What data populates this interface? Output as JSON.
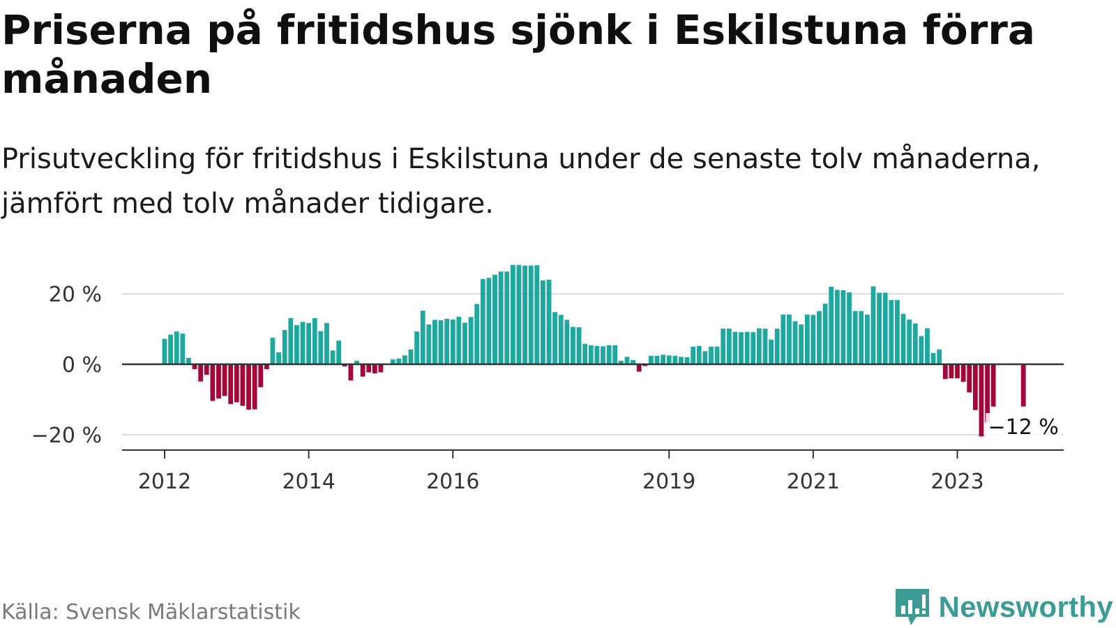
{
  "title": "Priserna på fritidshus sjönk i Eskilstuna förra månaden",
  "subtitle": "Prisutveckling för fritidshus i Eskilstuna under de senaste tolv månaderna, jämfört med tolv månader tidigare.",
  "source": "Källa: Svensk Mäklarstatistik",
  "brand": "Newsworthy",
  "colors": {
    "positive": "#1fa8a0",
    "negative": "#a3073a",
    "grid": "#dddddd",
    "zero": "#333333",
    "brand": "#3c9b94"
  },
  "chart_data": {
    "type": "bar",
    "ylim": [
      -24,
      30
    ],
    "y_ticks": [
      20,
      0,
      -20
    ],
    "y_tick_labels": [
      "20 %",
      "0 %",
      "−20 %"
    ],
    "x_ticks": [
      {
        "label": "2012",
        "date": "2012-01"
      },
      {
        "label": "2014",
        "date": "2014-01"
      },
      {
        "label": "2016",
        "date": "2016-01"
      },
      {
        "label": "2019",
        "date": "2019-01"
      },
      {
        "label": "2021",
        "date": "2021-01"
      },
      {
        "label": "2023",
        "date": "2023-01"
      }
    ],
    "first_date": "2012-01",
    "values": [
      7.2,
      8.4,
      9.3,
      8.7,
      1.8,
      -1.4,
      -4.9,
      -3.0,
      -10.4,
      -9.7,
      -9.0,
      -11.3,
      -10.8,
      -11.8,
      -12.9,
      -12.8,
      -6.5,
      -1.4,
      7.5,
      3.4,
      9.7,
      13.1,
      11.1,
      12.0,
      11.7,
      13.1,
      9.4,
      11.7,
      3.9,
      6.7,
      -0.6,
      -4.6,
      1.0,
      -3.5,
      -2.3,
      -2.6,
      -2.3,
      0.2,
      1.4,
      1.6,
      2.5,
      4.2,
      9.3,
      15.2,
      11.3,
      12.6,
      12.5,
      12.9,
      12.7,
      13.5,
      11.8,
      13.4,
      17.1,
      24.2,
      24.5,
      25.4,
      26.3,
      26.3,
      28.2,
      28.2,
      28.0,
      28.0,
      28.1,
      23.8,
      24.0,
      14.8,
      14.0,
      12.6,
      10.6,
      10.5,
      5.8,
      5.4,
      5.2,
      5.1,
      5.4,
      5.4,
      1.0,
      2.1,
      1.2,
      -2.1,
      -0.5,
      2.4,
      2.4,
      2.7,
      2.5,
      2.4,
      2.1,
      2.0,
      5.0,
      5.2,
      3.7,
      5.0,
      5.0,
      10.1,
      10.1,
      9.2,
      9.1,
      9.2,
      9.1,
      10.2,
      10.1,
      7.0,
      10.1,
      14.1,
      14.1,
      12.2,
      11.3,
      14.1,
      14.0,
      15.1,
      17.2,
      22.0,
      21.1,
      21.0,
      20.4,
      15.1,
      15.1,
      14.1,
      22.1,
      20.3,
      20.3,
      18.2,
      18.2,
      14.3,
      12.7,
      11.6,
      8.0,
      10.2,
      3.2,
      4.2,
      -4.2,
      -4.0,
      -4.0,
      -5.0,
      -8.0,
      -13.0,
      -20.5,
      -16.5,
      -12.0,
      null,
      null,
      null,
      null,
      -12.0
    ],
    "annotation": {
      "text": "−12 %",
      "value": -12.0,
      "date": "2023-12"
    }
  }
}
